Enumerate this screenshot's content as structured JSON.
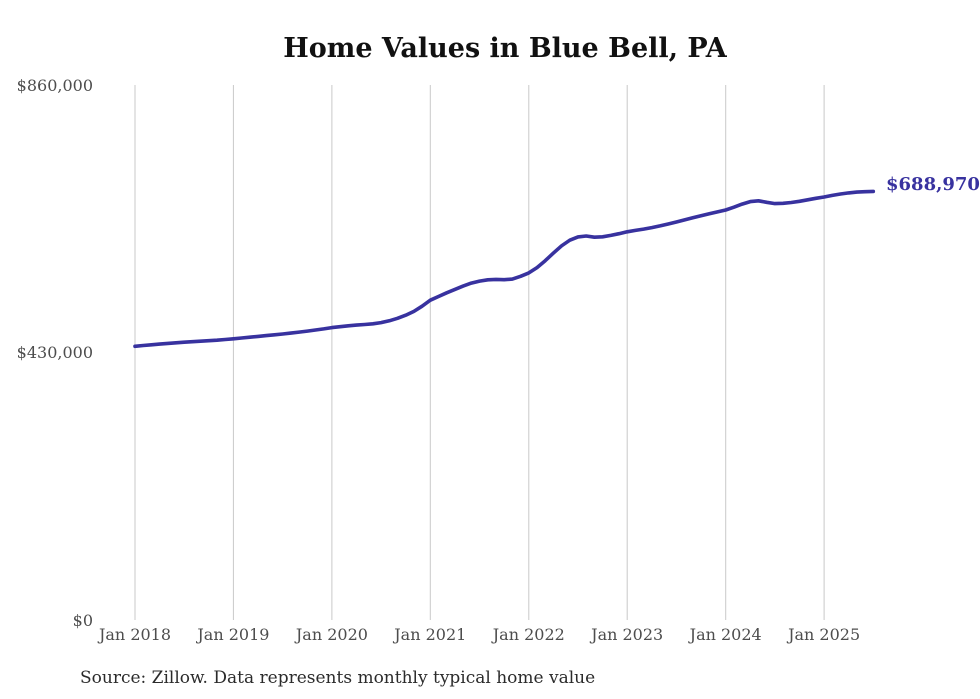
{
  "header": {
    "title": "Home Values in Blue Bell, PA"
  },
  "footer": {
    "source_note": "Source: Zillow. Data represents monthly typical home value"
  },
  "colors": {
    "line": "#38329f",
    "gridline": "#c9c9c9",
    "tick_label": "#4d4d4d",
    "title": "#111111",
    "background": "#ffffff"
  },
  "chart_data": {
    "type": "line",
    "title": "Home Values in Blue Bell, PA",
    "xlabel": "",
    "ylabel": "",
    "ylim": [
      0,
      860000
    ],
    "grid": "vertical-only",
    "legend": "none",
    "y_tick_labels": [
      "$0",
      "$430,000",
      "$860,000"
    ],
    "x_tick_labels": [
      "Jan 2018",
      "Jan 2019",
      "Jan 2020",
      "Jan 2021",
      "Jan 2022",
      "Jan 2023",
      "Jan 2024",
      "Jan 2025"
    ],
    "end_label": "$688,970",
    "last_value": 688970,
    "source": "Source: Zillow. Data represents monthly typical home value",
    "series": [
      {
        "name": "Monthly typical home value",
        "color": "#38329f",
        "x": [
          "2018-01",
          "2018-02",
          "2018-03",
          "2018-04",
          "2018-05",
          "2018-06",
          "2018-07",
          "2018-08",
          "2018-09",
          "2018-10",
          "2018-11",
          "2018-12",
          "2019-01",
          "2019-02",
          "2019-03",
          "2019-04",
          "2019-05",
          "2019-06",
          "2019-07",
          "2019-08",
          "2019-09",
          "2019-10",
          "2019-11",
          "2019-12",
          "2020-01",
          "2020-02",
          "2020-03",
          "2020-04",
          "2020-05",
          "2020-06",
          "2020-07",
          "2020-08",
          "2020-09",
          "2020-10",
          "2020-11",
          "2020-12",
          "2021-01",
          "2021-02",
          "2021-03",
          "2021-04",
          "2021-05",
          "2021-06",
          "2021-07",
          "2021-08",
          "2021-09",
          "2021-10",
          "2021-11",
          "2021-12",
          "2022-01",
          "2022-02",
          "2022-03",
          "2022-04",
          "2022-05",
          "2022-06",
          "2022-07",
          "2022-08",
          "2022-09",
          "2022-10",
          "2022-11",
          "2022-12",
          "2023-01",
          "2023-02",
          "2023-03",
          "2023-04",
          "2023-05",
          "2023-06",
          "2023-07",
          "2023-08",
          "2023-09",
          "2023-10",
          "2023-11",
          "2023-12",
          "2024-01",
          "2024-02",
          "2024-03",
          "2024-04",
          "2024-05",
          "2024-06",
          "2024-07",
          "2024-08",
          "2024-09",
          "2024-10",
          "2024-11",
          "2024-12",
          "2025-01",
          "2025-02",
          "2025-03",
          "2025-04",
          "2025-05",
          "2025-06",
          "2025-07"
        ],
        "values": [
          440000,
          441200,
          442400,
          443500,
          444600,
          445600,
          446500,
          447400,
          448200,
          449000,
          449800,
          450900,
          452000,
          453300,
          454600,
          455900,
          457200,
          458500,
          459800,
          461200,
          462800,
          464400,
          466100,
          468000,
          470000,
          471500,
          473000,
          474000,
          475000,
          476200,
          478000,
          481000,
          485000,
          490000,
          496000,
          504500,
          514000,
          520000,
          526000,
          531500,
          536800,
          541500,
          544800,
          546800,
          547500,
          547000,
          548000,
          552500,
          558000,
          566500,
          577500,
          589800,
          601500,
          610500,
          615800,
          617200,
          615400,
          616000,
          618200,
          621000,
          624000,
          626200,
          628400,
          630800,
          633500,
          636500,
          639800,
          643200,
          646500,
          649800,
          653000,
          656000,
          659000,
          663500,
          668500,
          672500,
          673800,
          671500,
          669300,
          669800,
          671200,
          673000,
          675400,
          677800,
          680000,
          682500,
          684800,
          686500,
          687800,
          688500,
          688970
        ]
      }
    ]
  }
}
